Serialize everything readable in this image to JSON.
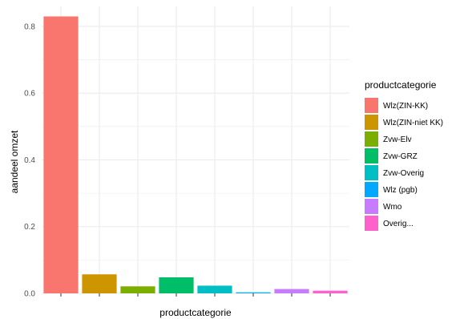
{
  "chart_data": {
    "type": "bar",
    "title": "",
    "xlabel": "productcategorie",
    "ylabel": "aandeel omzet",
    "categories": [
      "Wlz(ZIN-KK)",
      "Wlz(ZIN-niet KK)",
      "Zvw-Elv",
      "Zvw-GRZ",
      "Zvw-Overig",
      "Wlz (pgb)",
      "Wmo",
      "Overig..."
    ],
    "values": [
      0.83,
      0.057,
      0.021,
      0.048,
      0.023,
      0.003,
      0.013,
      0.008
    ],
    "colors": [
      "#F8766D",
      "#CD9600",
      "#7CAE00",
      "#00BE67",
      "#00BFC4",
      "#00A9FF",
      "#C77CFF",
      "#FF61CC"
    ],
    "ylim": [
      0,
      0.86
    ],
    "yticks": [
      "0.0",
      "0.2",
      "0.4",
      "0.6",
      "0.8"
    ],
    "ytick_values": [
      0,
      0.2,
      0.4,
      0.6,
      0.8
    ],
    "grid": true,
    "legend": {
      "title": "productcategorie",
      "placement": "right"
    },
    "panel_background": "#FFFFFF",
    "grid_color": "#EBEBEB"
  }
}
